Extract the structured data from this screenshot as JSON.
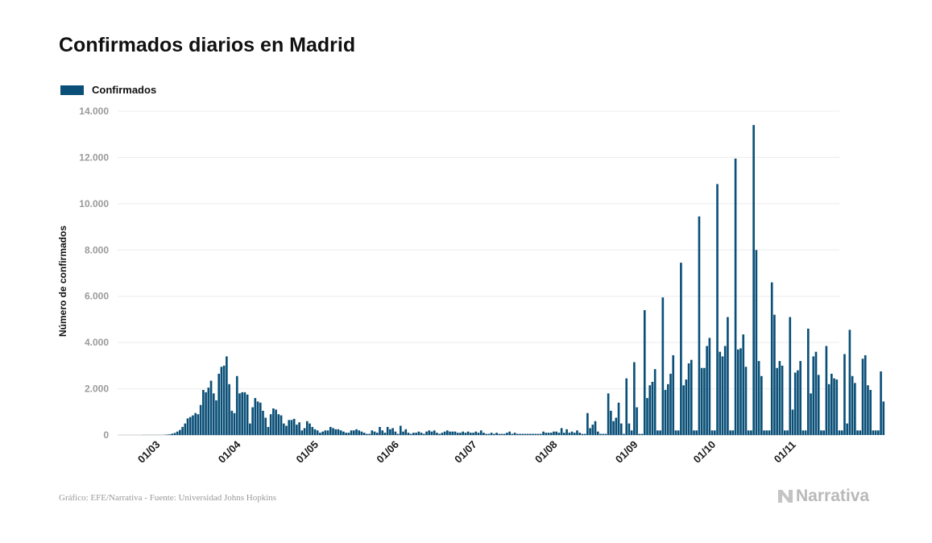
{
  "header": {
    "title": "Confirmados diarios en Madrid"
  },
  "legend": {
    "label": "Confirmados",
    "color": "#0a4f77"
  },
  "footer": {
    "source": "Gráfico: EFE/Narrativa - Fuente: Universidad Johns Hopkins",
    "brand": "Narrativa",
    "brand_icon": "narrativa-logo-icon"
  },
  "chart_data": {
    "type": "bar",
    "series": [
      {
        "name": "Confirmados",
        "color": "#0a4f77"
      }
    ],
    "ylabel": "Número de confirmados",
    "ylim": [
      0,
      14000
    ],
    "ytick_labels": [
      "0",
      "2.000",
      "4.000",
      "6.000",
      "8.000",
      "10.000",
      "12.000",
      "14.000"
    ],
    "ytick_values": [
      0,
      2000,
      4000,
      6000,
      8000,
      10000,
      12000,
      14000
    ],
    "x_range": [
      "2020-02-17",
      "2020-11-21"
    ],
    "xtick_labels": [
      "01/03",
      "01/04",
      "01/05",
      "01/06",
      "01/07",
      "01/08",
      "01/09",
      "01/10",
      "01/11"
    ],
    "xtick_dates": [
      "2020-03-01",
      "2020-04-01",
      "2020-05-01",
      "2020-06-01",
      "2020-07-01",
      "2020-08-01",
      "2020-09-01",
      "2020-10-01",
      "2020-11-01"
    ],
    "grid": true,
    "legend_position": "top-left",
    "start_date": "2020-02-27",
    "values": [
      5,
      5,
      5,
      5,
      5,
      5,
      5,
      5,
      10,
      20,
      30,
      60,
      90,
      150,
      220,
      350,
      500,
      720,
      780,
      850,
      950,
      900,
      1300,
      1950,
      1850,
      2050,
      2350,
      1800,
      1500,
      2650,
      2950,
      3000,
      3400,
      2200,
      1050,
      950,
      2550,
      1800,
      1850,
      1850,
      1750,
      500,
      1200,
      1600,
      1450,
      1400,
      1050,
      750,
      350,
      900,
      1150,
      1100,
      900,
      850,
      500,
      400,
      650,
      650,
      700,
      450,
      550,
      200,
      300,
      600,
      500,
      350,
      250,
      200,
      100,
      150,
      200,
      200,
      350,
      300,
      250,
      250,
      200,
      150,
      100,
      100,
      200,
      200,
      250,
      200,
      150,
      100,
      50,
      50,
      200,
      150,
      100,
      350,
      200,
      100,
      350,
      250,
      300,
      150,
      50,
      400,
      150,
      250,
      100,
      50,
      100,
      100,
      150,
      100,
      50,
      150,
      200,
      150,
      200,
      100,
      50,
      100,
      150,
      200,
      150,
      150,
      150,
      100,
      100,
      150,
      100,
      150,
      100,
      100,
      150,
      100,
      200,
      100,
      50,
      50,
      100,
      50,
      100,
      50,
      50,
      50,
      100,
      150,
      50,
      100,
      50,
      50,
      50,
      50,
      50,
      50,
      50,
      50,
      50,
      50,
      150,
      100,
      100,
      100,
      150,
      150,
      100,
      300,
      100,
      250,
      100,
      150,
      100,
      200,
      100,
      50,
      50,
      950,
      300,
      450,
      600,
      150,
      50,
      50,
      50,
      1800,
      1050,
      600,
      750,
      1400,
      500,
      50,
      2450,
      500,
      200,
      3150,
      1200,
      50,
      50,
      5400,
      1600,
      2150,
      2300,
      2850,
      200,
      200,
      5950,
      1950,
      2200,
      2650,
      3450,
      200,
      200,
      7450,
      2150,
      2400,
      3100,
      3250,
      200,
      200,
      9450,
      2900,
      2900,
      3850,
      4200,
      200,
      200,
      10850,
      3600,
      3400,
      3850,
      5100,
      200,
      200,
      11950,
      3700,
      3750,
      4350,
      2950,
      200,
      200,
      13400,
      8000,
      3200,
      2550,
      200,
      200,
      200,
      6600,
      5200,
      2900,
      3200,
      3000,
      200,
      200,
      5100,
      1100,
      2700,
      2800,
      3200,
      200,
      200,
      4600,
      1800,
      3400,
      3600,
      2600,
      200,
      200,
      3850,
      2200,
      2650,
      2450,
      2400,
      200,
      200,
      3500,
      500,
      4550,
      2550,
      2250,
      200,
      200,
      3300,
      3450,
      2150,
      1950,
      200,
      200,
      200,
      2750,
      1450
    ]
  }
}
